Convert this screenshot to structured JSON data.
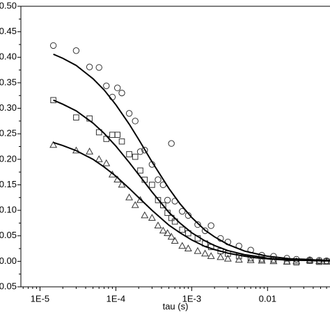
{
  "chart_data": {
    "type": "scatter",
    "xlabel": "tau (s)",
    "xscale": "log",
    "xlim": [
      5.6e-06,
      0.068
    ],
    "ylim": [
      -0.05,
      0.5
    ],
    "xticks": [
      {
        "value": 1e-05,
        "label": "1E-5"
      },
      {
        "value": 0.0001,
        "label": "1E-4"
      },
      {
        "value": 0.001,
        "label": "1E-3"
      },
      0.01
    ],
    "yticks": [
      {
        "value": -0.05,
        "label": "-0.05"
      },
      {
        "value": 0,
        "label": "0.00"
      },
      {
        "value": 0.05,
        "label": "0.05"
      },
      {
        "value": 0.1,
        "label": "0.10"
      },
      {
        "value": 0.15,
        "label": "0.15"
      },
      {
        "value": 0.2,
        "label": "0.20"
      },
      {
        "value": 0.25,
        "label": "0.25"
      },
      {
        "value": 0.3,
        "label": "0.30"
      },
      {
        "value": 0.35,
        "label": "0.35"
      },
      {
        "value": 0.4,
        "label": "0.40"
      },
      {
        "value": 0.45,
        "label": "0.45"
      },
      {
        "value": 0.5,
        "label": "0.50"
      }
    ],
    "series": [
      {
        "marker": "circle",
        "color": "#333333",
        "x": [
          1.5e-05,
          3e-05,
          4.5e-05,
          6e-05,
          7.5e-05,
          9e-05,
          0.000105,
          0.00012,
          0.00015,
          0.00018,
          0.00021,
          0.00024,
          0.0003,
          0.00036,
          0.00042,
          0.00048,
          0.00054,
          0.0006,
          0.00075,
          0.0009,
          0.0012,
          0.0015,
          0.0018,
          0.0024,
          0.003,
          0.0042,
          0.006,
          0.0084,
          0.012,
          0.018,
          0.024,
          0.036,
          0.048,
          0.06
        ],
        "values": [
          0.423,
          0.413,
          0.381,
          0.38,
          0.344,
          0.322,
          0.34,
          0.33,
          0.29,
          0.275,
          0.215,
          0.218,
          0.19,
          0.16,
          0.15,
          0.12,
          0.231,
          0.118,
          0.098,
          0.09,
          0.072,
          0.06,
          0.07,
          0.045,
          0.038,
          0.03,
          0.022,
          0.012,
          0.01,
          0.006,
          0.004,
          0.003,
          0.002,
          0.001
        ]
      },
      {
        "marker": "square",
        "color": "#333333",
        "x": [
          1.5e-05,
          3e-05,
          4.5e-05,
          6e-05,
          7.5e-05,
          9e-05,
          0.000105,
          0.00012,
          0.00015,
          0.00018,
          0.00021,
          0.00024,
          0.0003,
          0.00036,
          0.00042,
          0.00048,
          0.00054,
          0.0006,
          0.00075,
          0.0009,
          0.0012,
          0.0015,
          0.0018,
          0.0024,
          0.003,
          0.0042,
          0.006,
          0.0084,
          0.012,
          0.018,
          0.024,
          0.036,
          0.048,
          0.06
        ],
        "values": [
          0.316,
          0.282,
          0.28,
          0.253,
          0.24,
          0.248,
          0.248,
          0.235,
          0.21,
          0.205,
          0.178,
          0.16,
          0.15,
          0.12,
          0.11,
          0.095,
          0.085,
          0.078,
          0.062,
          0.055,
          0.045,
          0.035,
          0.028,
          0.02,
          0.015,
          0.01,
          0.006,
          0.004,
          0.003,
          0,
          -0.002,
          0.001,
          -0.001,
          0
        ]
      },
      {
        "marker": "triangle",
        "color": "#333333",
        "x": [
          1.5e-05,
          3e-05,
          4.5e-05,
          6e-05,
          7.5e-05,
          9e-05,
          0.000105,
          0.00012,
          0.00015,
          0.00018,
          0.00021,
          0.00024,
          0.0003,
          0.00036,
          0.00042,
          0.00048,
          0.00054,
          0.0006,
          0.00075,
          0.0009,
          0.0012,
          0.0015,
          0.0018,
          0.0024,
          0.003,
          0.0042,
          0.006,
          0.0084,
          0.012,
          0.018,
          0.024,
          0.036,
          0.048,
          0.06
        ],
        "values": [
          0.228,
          0.217,
          0.215,
          0.2,
          0.192,
          0.17,
          0.16,
          0.15,
          0.125,
          0.11,
          0.12,
          0.09,
          0.085,
          0.07,
          0.06,
          0.055,
          0.048,
          0.04,
          0.03,
          0.025,
          0.02,
          0.015,
          0.01,
          0.008,
          0.005,
          0.003,
          0.002,
          0.001,
          0,
          -0.001,
          0,
          0.002,
          0,
          -0.001
        ]
      },
      {
        "marker": "line",
        "color": "#000000",
        "x": [
          1.5e-05,
          2e-05,
          3e-05,
          5e-05,
          7e-05,
          0.0001,
          0.00015,
          0.0002,
          0.0003,
          0.0005,
          0.0007,
          0.001,
          0.0015,
          0.002,
          0.003,
          0.005,
          0.007,
          0.01,
          0.02,
          0.03,
          0.05,
          0.07
        ],
        "values": [
          0.406,
          0.398,
          0.384,
          0.358,
          0.336,
          0.307,
          0.269,
          0.239,
          0.195,
          0.143,
          0.113,
          0.086,
          0.061,
          0.048,
          0.033,
          0.02,
          0.015,
          0.01,
          0.005,
          0.004,
          0.002,
          0.002
        ]
      },
      {
        "marker": "line",
        "color": "#000000",
        "x": [
          1.5e-05,
          2e-05,
          3e-05,
          5e-05,
          7e-05,
          0.0001,
          0.00015,
          0.0002,
          0.0003,
          0.0005,
          0.0007,
          0.001,
          0.0015,
          0.002,
          0.003,
          0.005,
          0.007,
          0.01,
          0.02,
          0.03,
          0.05,
          0.07
        ],
        "values": [
          0.316,
          0.308,
          0.295,
          0.271,
          0.251,
          0.226,
          0.194,
          0.17,
          0.136,
          0.096,
          0.075,
          0.056,
          0.04,
          0.031,
          0.021,
          0.013,
          0.01,
          0.006,
          0.003,
          0.002,
          0.001,
          0.001
        ]
      },
      {
        "marker": "line",
        "color": "#000000",
        "x": [
          1.5e-05,
          2e-05,
          3e-05,
          5e-05,
          7e-05,
          0.0001,
          0.00015,
          0.0002,
          0.0003,
          0.0005,
          0.0007,
          0.001,
          0.0015,
          0.002,
          0.003,
          0.005,
          0.007,
          0.01,
          0.02,
          0.03,
          0.05,
          0.07
        ],
        "values": [
          0.233,
          0.227,
          0.217,
          0.2,
          0.185,
          0.167,
          0.143,
          0.125,
          0.1,
          0.071,
          0.056,
          0.042,
          0.029,
          0.023,
          0.016,
          0.01,
          0.007,
          0.005,
          0.002,
          0.002,
          0.001,
          0.001
        ]
      }
    ]
  }
}
